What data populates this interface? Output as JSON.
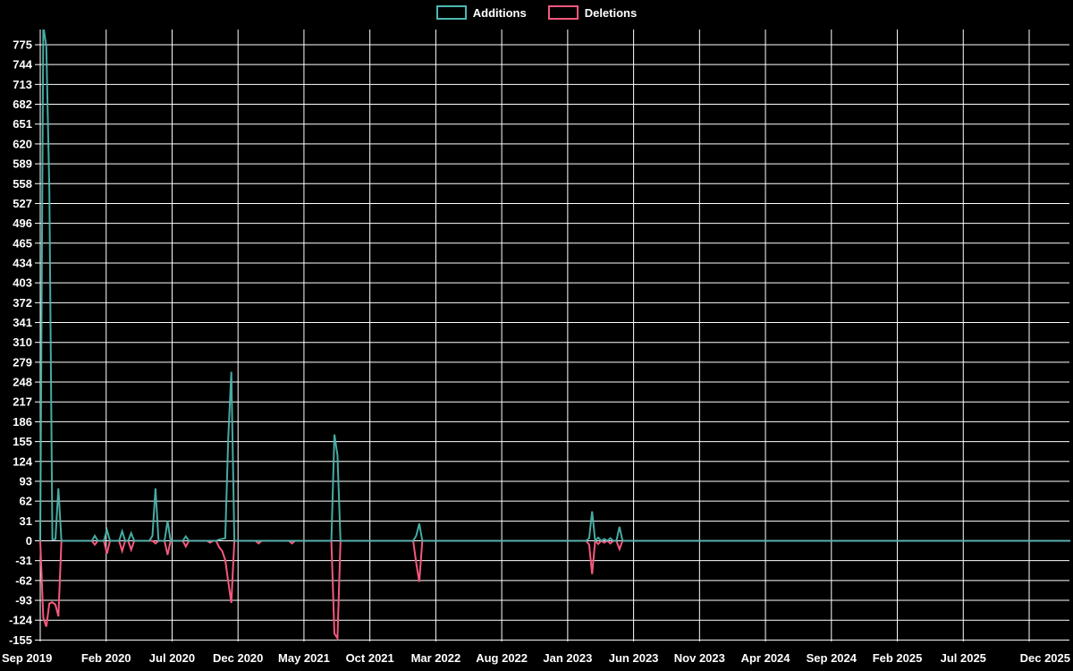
{
  "legend": {
    "position": "top-center",
    "additions_label": "Additions",
    "deletions_label": "Deletions"
  },
  "colors": {
    "background": "#000000",
    "grid": "#ffffff",
    "text": "#ffffff",
    "additions": "#4cb8b0",
    "deletions": "#f4587c"
  },
  "chart_data": {
    "type": "line",
    "title": "",
    "xlabel": "",
    "ylabel": "",
    "grid": true,
    "legend_position": "top-center",
    "x_tick_labels": [
      "Sep 2019",
      "Feb 2020",
      "Jul 2020",
      "Dec 2020",
      "May 2021",
      "Oct 2021",
      "Mar 2022",
      "Aug 2022",
      "Jan 2023",
      "Jun 2023",
      "Nov 2023",
      "Apr 2024",
      "Sep 2024",
      "Feb 2025",
      "Jul 2025",
      "Dec 2025"
    ],
    "x_tick_interval_months": 5,
    "y_ticks": [
      775,
      744,
      713,
      682,
      651,
      620,
      589,
      558,
      527,
      496,
      465,
      434,
      403,
      372,
      341,
      310,
      279,
      248,
      217,
      186,
      155,
      124,
      93,
      62,
      31,
      0,
      -31,
      -62,
      -93,
      -124,
      -155
    ],
    "y_tick_step": 31,
    "ylim": [
      -167,
      798
    ],
    "total_weeks": 342,
    "default_value": 0,
    "series": [
      {
        "name": "Additions",
        "color": "#4cb8b0",
        "sparse_weekly_points": [
          {
            "week": 1,
            "approx_date": "2019-09-15",
            "value": 805
          },
          {
            "week": 2,
            "approx_date": "2019-09-22",
            "value": 772
          },
          {
            "week": 3,
            "approx_date": "2019-09-29",
            "value": 548
          },
          {
            "week": 4,
            "approx_date": "2019-10-06",
            "value": 2
          },
          {
            "week": 5,
            "approx_date": "2019-10-13",
            "value": 3
          },
          {
            "week": 6,
            "approx_date": "2019-10-20",
            "value": 82
          },
          {
            "week": 18,
            "approx_date": "2020-01-12",
            "value": 8
          },
          {
            "week": 22,
            "approx_date": "2020-02-09",
            "value": 17
          },
          {
            "week": 27,
            "approx_date": "2020-03-15",
            "value": 15
          },
          {
            "week": 30,
            "approx_date": "2020-04-05",
            "value": 12
          },
          {
            "week": 37,
            "approx_date": "2020-05-24",
            "value": 8
          },
          {
            "week": 38,
            "approx_date": "2020-05-31",
            "value": 82
          },
          {
            "week": 42,
            "approx_date": "2020-06-28",
            "value": 31
          },
          {
            "week": 48,
            "approx_date": "2020-08-09",
            "value": 7
          },
          {
            "week": 59,
            "approx_date": "2020-10-25",
            "value": 2
          },
          {
            "week": 60,
            "approx_date": "2020-11-01",
            "value": 3
          },
          {
            "week": 61,
            "approx_date": "2020-11-08",
            "value": 4
          },
          {
            "week": 62,
            "approx_date": "2020-11-15",
            "value": 162
          },
          {
            "week": 63,
            "approx_date": "2020-11-22",
            "value": 264
          },
          {
            "week": 97,
            "approx_date": "2021-07-18",
            "value": 166
          },
          {
            "week": 98,
            "approx_date": "2021-07-25",
            "value": 134
          },
          {
            "week": 124,
            "approx_date": "2022-01-23",
            "value": 8
          },
          {
            "week": 125,
            "approx_date": "2022-01-30",
            "value": 27
          },
          {
            "week": 181,
            "approx_date": "2023-02-26",
            "value": 4
          },
          {
            "week": 182,
            "approx_date": "2023-03-05",
            "value": 46
          },
          {
            "week": 184,
            "approx_date": "2023-03-19",
            "value": 5
          },
          {
            "week": 186,
            "approx_date": "2023-04-02",
            "value": 3
          },
          {
            "week": 188,
            "approx_date": "2023-04-16",
            "value": 4
          },
          {
            "week": 191,
            "approx_date": "2023-05-07",
            "value": 22
          }
        ]
      },
      {
        "name": "Deletions",
        "color": "#f4587c",
        "sparse_weekly_points": [
          {
            "week": 1,
            "approx_date": "2019-09-15",
            "value": -120
          },
          {
            "week": 2,
            "approx_date": "2019-09-22",
            "value": -134
          },
          {
            "week": 3,
            "approx_date": "2019-09-29",
            "value": -98
          },
          {
            "week": 4,
            "approx_date": "2019-10-06",
            "value": -96
          },
          {
            "week": 5,
            "approx_date": "2019-10-13",
            "value": -100
          },
          {
            "week": 6,
            "approx_date": "2019-10-20",
            "value": -118
          },
          {
            "week": 18,
            "approx_date": "2020-01-12",
            "value": -6
          },
          {
            "week": 22,
            "approx_date": "2020-02-09",
            "value": -20
          },
          {
            "week": 27,
            "approx_date": "2020-03-15",
            "value": -16
          },
          {
            "week": 30,
            "approx_date": "2020-04-05",
            "value": -14
          },
          {
            "week": 38,
            "approx_date": "2020-05-31",
            "value": -4
          },
          {
            "week": 42,
            "approx_date": "2020-06-28",
            "value": -22
          },
          {
            "week": 48,
            "approx_date": "2020-08-09",
            "value": -9
          },
          {
            "week": 56,
            "approx_date": "2020-10-04",
            "value": -3
          },
          {
            "week": 59,
            "approx_date": "2020-10-25",
            "value": -10
          },
          {
            "week": 60,
            "approx_date": "2020-11-01",
            "value": -16
          },
          {
            "week": 61,
            "approx_date": "2020-11-08",
            "value": -30
          },
          {
            "week": 62,
            "approx_date": "2020-11-15",
            "value": -64
          },
          {
            "week": 63,
            "approx_date": "2020-11-22",
            "value": -97
          },
          {
            "week": 72,
            "approx_date": "2021-01-24",
            "value": -4
          },
          {
            "week": 83,
            "approx_date": "2021-04-11",
            "value": -4
          },
          {
            "week": 97,
            "approx_date": "2021-07-18",
            "value": -145
          },
          {
            "week": 98,
            "approx_date": "2021-07-25",
            "value": -152
          },
          {
            "week": 124,
            "approx_date": "2022-01-23",
            "value": -35
          },
          {
            "week": 125,
            "approx_date": "2022-01-30",
            "value": -64
          },
          {
            "week": 181,
            "approx_date": "2023-02-26",
            "value": -6
          },
          {
            "week": 182,
            "approx_date": "2023-03-05",
            "value": -52
          },
          {
            "week": 184,
            "approx_date": "2023-03-19",
            "value": -5
          },
          {
            "week": 186,
            "approx_date": "2023-04-02",
            "value": -3
          },
          {
            "week": 188,
            "approx_date": "2023-04-16",
            "value": -4
          },
          {
            "week": 191,
            "approx_date": "2023-05-07",
            "value": -13
          }
        ]
      }
    ]
  }
}
